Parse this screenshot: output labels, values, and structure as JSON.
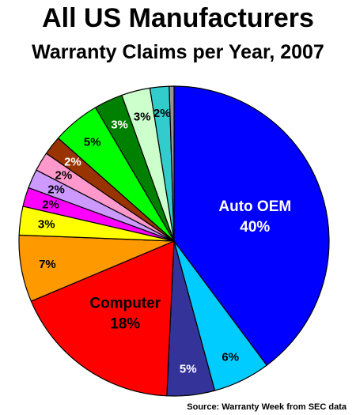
{
  "chart_data": {
    "type": "pie",
    "title": "All US Manufacturers",
    "subtitle": "Warranty Claims per Year, 2007",
    "source": "Source: Warranty Week from SEC data",
    "slices": [
      {
        "name": "Auto OEM",
        "label": "Auto OEM",
        "value": 40,
        "display": "40%",
        "color": "#0000ff",
        "text_color": "#ffffff"
      },
      {
        "name": "",
        "label": "",
        "value": 6,
        "display": "6%",
        "color": "#00ccff",
        "text_color": "#000000"
      },
      {
        "name": "",
        "label": "",
        "value": 5,
        "display": "5%",
        "color": "#333399",
        "text_color": "#ffffff"
      },
      {
        "name": "Computer",
        "label": "Computer",
        "value": 18,
        "display": "18%",
        "color": "#ff0000",
        "text_color": "#000000"
      },
      {
        "name": "",
        "label": "",
        "value": 7,
        "display": "7%",
        "color": "#ff9900",
        "text_color": "#000000"
      },
      {
        "name": "",
        "label": "",
        "value": 3,
        "display": "3%",
        "color": "#ffff00",
        "text_color": "#000000"
      },
      {
        "name": "",
        "label": "",
        "value": 2,
        "display": "2%",
        "color": "#ff00ff",
        "text_color": "#000000"
      },
      {
        "name": "",
        "label": "",
        "value": 2,
        "display": "2%",
        "color": "#cc99ff",
        "text_color": "#000000"
      },
      {
        "name": "",
        "label": "",
        "value": 2,
        "display": "2%",
        "color": "#ff99cc",
        "text_color": "#000000"
      },
      {
        "name": "",
        "label": "",
        "value": 2,
        "display": "2%",
        "color": "#993300",
        "text_color": "#ffffff"
      },
      {
        "name": "",
        "label": "",
        "value": 5,
        "display": "5%",
        "color": "#00ff00",
        "text_color": "#000000"
      },
      {
        "name": "",
        "label": "",
        "value": 3,
        "display": "3%",
        "color": "#008000",
        "text_color": "#ffffff"
      },
      {
        "name": "",
        "label": "",
        "value": 3,
        "display": "3%",
        "color": "#ccffcc",
        "text_color": "#000000"
      },
      {
        "name": "",
        "label": "",
        "value": 2,
        "display": "2%",
        "color": "#33cccc",
        "text_color": "#000000"
      },
      {
        "name": "",
        "label": "",
        "value": 0.5,
        "display": "",
        "color": "#969696",
        "text_color": "#000000"
      }
    ]
  }
}
